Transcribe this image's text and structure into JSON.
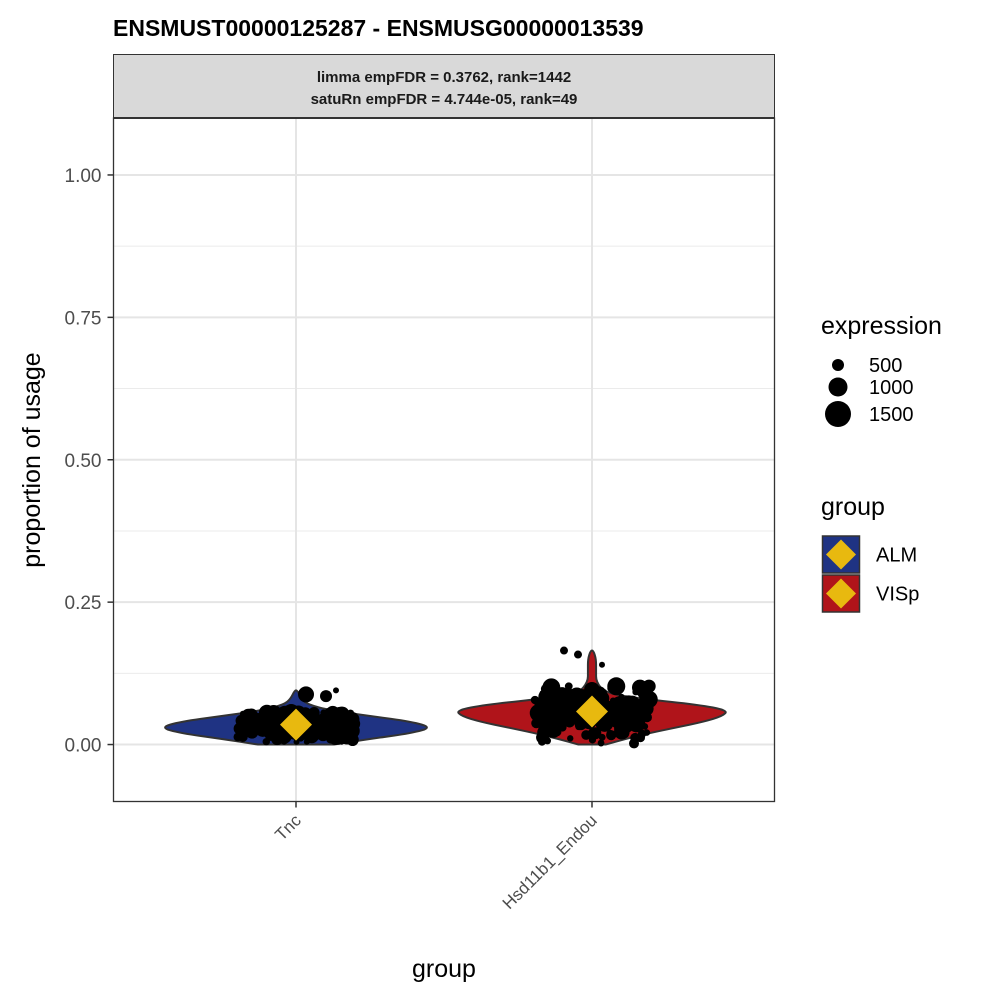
{
  "chart_data": {
    "type": "violin",
    "title": "ENSMUST00000125287  -  ENSMUSG00000013539",
    "strip": [
      "limma empFDR = 0.3762, rank=1442",
      "satuRn empFDR = 4.744e-05, rank=49"
    ],
    "xlabel": "group",
    "ylabel": "proportion of usage",
    "categories": [
      "Tnc",
      "Hsd11b1_Endou"
    ],
    "ylim": [
      -0.1,
      1.1
    ],
    "yticks": [
      0.0,
      0.25,
      0.5,
      0.75,
      1.0
    ],
    "ytick_labels": [
      "0.00",
      "0.25",
      "0.50",
      "0.75",
      "1.00"
    ],
    "grid": true,
    "series": [
      {
        "name": "ALM",
        "category": "Tnc",
        "color": "#1f3383",
        "mean": 0.035,
        "violin_range": [
          0.0,
          0.095
        ],
        "points_range": [
          0.005,
          0.09
        ],
        "violin_profile": [
          [
            0.0,
            0.28
          ],
          [
            0.01,
            0.55
          ],
          [
            0.02,
            0.85
          ],
          [
            0.03,
            1.0
          ],
          [
            0.04,
            0.85
          ],
          [
            0.05,
            0.55
          ],
          [
            0.06,
            0.25
          ],
          [
            0.07,
            0.09
          ],
          [
            0.08,
            0.04
          ],
          [
            0.095,
            0.01
          ]
        ]
      },
      {
        "name": "VISp",
        "category": "Hsd11b1_Endou",
        "color": "#b0141a",
        "mean": 0.058,
        "violin_range": [
          0.0,
          0.165
        ],
        "points_range": [
          0.0,
          0.165
        ],
        "violin_profile": [
          [
            0.0,
            0.1
          ],
          [
            0.01,
            0.25
          ],
          [
            0.02,
            0.42
          ],
          [
            0.03,
            0.62
          ],
          [
            0.04,
            0.82
          ],
          [
            0.05,
            0.96
          ],
          [
            0.06,
            1.0
          ],
          [
            0.07,
            0.78
          ],
          [
            0.08,
            0.38
          ],
          [
            0.09,
            0.1
          ],
          [
            0.11,
            0.03
          ],
          [
            0.13,
            0.03
          ],
          [
            0.15,
            0.03
          ],
          [
            0.165,
            0.01
          ]
        ]
      }
    ],
    "mean_marker_color": "#e8b90f",
    "legend": {
      "placement": "right",
      "size_title": "expression",
      "size_entries": [
        "500",
        "1000",
        "1500"
      ],
      "color_title": "group",
      "color_entries": [
        "ALM",
        "VISp"
      ]
    }
  }
}
